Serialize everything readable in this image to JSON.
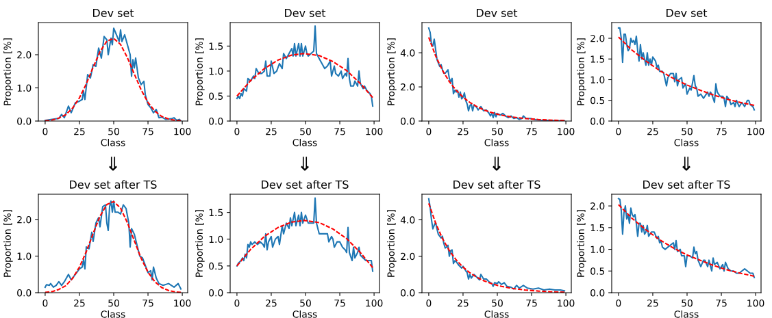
{
  "chart_data": [
    {
      "type": "line",
      "title": "Dev set",
      "xlabel": "Class",
      "ylabel": "Proportion [%]",
      "xlim": [
        -4.95,
        103.95
      ],
      "xticks": [
        0,
        25,
        50,
        75,
        100
      ],
      "ylim": [
        0,
        2.97
      ],
      "yticks": [
        {
          "value": 0,
          "label": "0.0"
        },
        {
          "value": 1,
          "label": "1.0"
        },
        {
          "value": 2,
          "label": "2.0"
        }
      ],
      "grid": false,
      "legend": false,
      "series": [
        {
          "color": "#1f77b4",
          "line_style": "solid",
          "x": [
            0,
            5,
            10,
            12,
            14,
            17,
            19,
            22,
            25,
            27,
            28,
            29,
            31,
            33,
            35,
            37,
            39,
            41,
            43,
            45,
            46,
            48,
            49,
            50,
            52,
            54,
            55,
            56,
            58,
            60,
            62,
            63,
            64,
            65,
            66,
            68,
            70,
            72,
            73,
            75,
            77,
            79,
            81,
            83,
            85,
            88,
            92,
            94,
            96,
            98,
            99
          ],
          "values": [
            0.02,
            0.05,
            0.08,
            0.2,
            0.1,
            0.45,
            0.25,
            0.55,
            0.6,
            0.65,
            0.9,
            0.65,
            1.4,
            1.3,
            1.7,
            1.65,
            2.2,
            1.9,
            2.55,
            2.45,
            2.0,
            2.5,
            2.3,
            2.8,
            2.6,
            2.4,
            2.75,
            2.4,
            2.6,
            2.3,
            2.0,
            1.35,
            1.85,
            1.6,
            1.9,
            1.3,
            1.1,
            1.2,
            0.8,
            0.5,
            0.4,
            0.25,
            0.35,
            0.1,
            0.12,
            0.05,
            0.07,
            0.1,
            0.02,
            0.05,
            0.0
          ]
        },
        {
          "color": "#ff0000",
          "line_style": "dashed",
          "x": [
            0,
            5,
            10,
            15,
            20,
            25,
            30,
            35,
            40,
            45,
            50,
            55,
            60,
            65,
            70,
            75,
            80,
            85,
            90,
            95,
            99
          ],
          "values": [
            0.01,
            0.03,
            0.09,
            0.19,
            0.39,
            0.7,
            1.12,
            1.62,
            2.09,
            2.41,
            2.49,
            2.31,
            1.91,
            1.42,
            0.94,
            0.56,
            0.3,
            0.14,
            0.06,
            0.02,
            0.01
          ]
        }
      ]
    },
    {
      "type": "line",
      "title": "Dev set",
      "xlabel": "Class",
      "ylabel": "Proportion [%]",
      "xlim": [
        -4.95,
        103.95
      ],
      "xticks": [
        0,
        25,
        50,
        75,
        100
      ],
      "ylim": [
        0,
        1.97
      ],
      "yticks": [
        {
          "value": 0,
          "label": "0.0"
        },
        {
          "value": 0.5,
          "label": "0.5"
        },
        {
          "value": 1,
          "label": "1.0"
        },
        {
          "value": 1.5,
          "label": "1.5"
        }
      ],
      "grid": false,
      "legend": false,
      "series": [
        {
          "color": "#1f77b4",
          "line_style": "solid",
          "x": [
            0,
            1,
            2,
            3,
            4,
            5,
            7,
            8,
            10,
            12,
            13,
            14,
            16,
            18,
            20,
            21,
            22,
            24,
            25,
            27,
            29,
            31,
            33,
            34,
            36,
            38,
            40,
            41,
            42,
            43,
            45,
            46,
            47,
            48,
            50,
            51,
            52,
            54,
            56,
            57,
            58,
            60,
            62,
            64,
            66,
            68,
            69,
            71,
            72,
            74,
            76,
            77,
            79,
            80,
            81,
            82,
            83,
            85,
            86,
            88,
            89,
            90,
            92,
            93,
            95,
            97,
            98,
            99
          ],
          "values": [
            0.45,
            0.5,
            0.45,
            0.55,
            0.5,
            0.65,
            0.6,
            0.85,
            0.8,
            0.9,
            0.85,
            1.05,
            0.95,
            0.95,
            1.0,
            1.2,
            0.9,
            0.9,
            1.2,
            0.95,
            1.0,
            1.15,
            1.05,
            1.35,
            1.25,
            1.35,
            1.45,
            1.3,
            1.55,
            1.3,
            1.55,
            1.3,
            1.55,
            1.3,
            1.5,
            1.35,
            1.3,
            1.35,
            1.4,
            1.9,
            1.35,
            1.25,
            1.15,
            1.05,
            1.1,
            1.2,
            0.9,
            1.1,
            0.95,
            0.9,
            1.0,
            0.85,
            0.95,
            0.9,
            1.25,
            0.85,
            0.7,
            0.7,
            0.8,
            0.7,
            1.0,
            0.75,
            0.65,
            0.7,
            0.6,
            0.55,
            0.5,
            0.3
          ]
        },
        {
          "color": "#ff0000",
          "line_style": "dashed",
          "x": [
            0,
            10,
            20,
            30,
            40,
            49,
            60,
            70,
            80,
            90,
            99
          ],
          "values": [
            0.5,
            0.81,
            1.05,
            1.22,
            1.32,
            1.35,
            1.31,
            1.19,
            1.01,
            0.75,
            0.47
          ]
        }
      ]
    },
    {
      "type": "line",
      "title": "Dev set",
      "xlabel": "Class",
      "ylabel": "Proportion [%]",
      "xlim": [
        -4.95,
        103.95
      ],
      "xticks": [
        0,
        25,
        50,
        75,
        100
      ],
      "ylim": [
        0,
        5.77
      ],
      "yticks": [
        {
          "value": 0,
          "label": "0.0"
        },
        {
          "value": 2,
          "label": "2.0"
        },
        {
          "value": 4,
          "label": "4.0"
        }
      ],
      "grid": false,
      "legend": false,
      "series": [
        {
          "color": "#1f77b4",
          "line_style": "solid",
          "x": [
            0,
            1,
            2,
            3,
            4,
            5,
            6,
            7,
            8,
            9,
            10,
            11,
            12,
            13,
            14,
            15,
            16,
            17,
            18,
            19,
            20,
            21,
            22,
            23,
            24,
            25,
            26,
            27,
            28,
            29,
            30,
            31,
            32,
            33,
            35,
            36,
            38,
            40,
            42,
            44,
            45,
            46,
            47,
            48,
            49,
            50,
            52,
            54,
            56,
            58,
            60,
            62,
            64,
            66,
            68,
            69,
            71,
            74,
            78,
            82,
            86,
            90,
            95,
            99
          ],
          "values": [
            5.45,
            5.2,
            4.5,
            4.4,
            4.8,
            4.2,
            3.6,
            3.4,
            3.2,
            3.3,
            3.0,
            2.8,
            2.8,
            2.9,
            3.0,
            2.5,
            2.3,
            2.5,
            1.6,
            1.8,
            1.7,
            1.8,
            1.4,
            1.7,
            1.3,
            1.4,
            1.65,
            1.2,
            1.0,
            0.6,
            0.9,
            1.0,
            0.6,
            0.95,
            0.8,
            0.65,
            0.85,
            0.6,
            0.65,
            0.45,
            0.3,
            0.45,
            0.2,
            0.5,
            0.25,
            0.45,
            0.35,
            0.45,
            0.3,
            0.2,
            0.3,
            0.15,
            0.2,
            0.1,
            0.15,
            0.3,
            0.15,
            0.15,
            0.08,
            0.05,
            0.04,
            0.03,
            0.02,
            0.01
          ]
        },
        {
          "color": "#ff0000",
          "line_style": "dashed",
          "x": [
            0,
            5,
            10,
            15,
            20,
            25,
            30,
            35,
            40,
            45,
            50,
            60,
            70,
            80,
            90,
            99
          ],
          "values": [
            4.9,
            3.82,
            2.97,
            2.31,
            1.8,
            1.4,
            1.09,
            0.85,
            0.66,
            0.52,
            0.4,
            0.24,
            0.15,
            0.09,
            0.05,
            0.03
          ]
        }
      ]
    },
    {
      "type": "line",
      "title": "Dev set",
      "xlabel": "Class",
      "ylabel": "Proportion [%]",
      "xlim": [
        -4.95,
        103.95
      ],
      "xticks": [
        0,
        25,
        50,
        75,
        100
      ],
      "ylim": [
        0,
        2.38
      ],
      "yticks": [
        {
          "value": 0,
          "label": "0.0"
        },
        {
          "value": 0.5,
          "label": "0.5"
        },
        {
          "value": 1,
          "label": "1.0"
        },
        {
          "value": 1.5,
          "label": "1.5"
        },
        {
          "value": 2,
          "label": "2.0"
        }
      ],
      "grid": false,
      "legend": false,
      "series": [
        {
          "color": "#1f77b4",
          "line_style": "solid",
          "x": [
            0,
            1,
            2,
            3,
            4,
            5,
            6,
            7,
            8,
            9,
            10,
            11,
            12,
            13,
            14,
            15,
            16,
            17,
            18,
            19,
            20,
            21,
            22,
            23,
            24,
            25,
            27,
            28,
            29,
            30,
            32,
            33,
            34,
            35,
            36,
            38,
            40,
            41,
            42,
            43,
            44,
            46,
            47,
            49,
            50,
            52,
            53,
            55,
            56,
            57,
            58,
            60,
            62,
            64,
            65,
            66,
            67,
            68,
            70,
            71,
            72,
            74,
            76,
            77,
            78,
            79,
            81,
            82,
            84,
            85,
            86,
            88,
            90,
            92,
            94,
            95,
            96,
            98,
            99
          ],
          "values": [
            2.25,
            2.25,
            2.0,
            1.42,
            2.1,
            2.1,
            1.85,
            1.7,
            1.75,
            2.0,
            1.9,
            1.95,
            1.85,
            2.05,
            1.7,
            1.45,
            1.85,
            1.5,
            1.65,
            1.5,
            1.35,
            1.65,
            1.35,
            1.5,
            1.35,
            1.55,
            1.45,
            1.3,
            1.35,
            1.2,
            1.2,
            1.15,
            1.0,
            0.85,
            1.05,
            1.15,
            1.15,
            0.95,
            1.15,
            0.85,
            1.0,
            1.05,
            0.8,
            0.9,
            0.65,
            0.8,
            0.75,
            1.1,
            0.85,
            0.8,
            0.6,
            0.65,
            0.55,
            0.65,
            0.7,
            0.6,
            0.7,
            0.65,
            0.45,
            0.9,
            0.7,
            0.6,
            0.6,
            0.55,
            0.35,
            0.6,
            0.5,
            0.4,
            0.45,
            0.35,
            0.5,
            0.35,
            0.45,
            0.35,
            0.5,
            0.5,
            0.4,
            0.35,
            0.27
          ]
        },
        {
          "color": "#ff0000",
          "line_style": "dashed",
          "x": [
            0,
            10,
            20,
            30,
            40,
            50,
            60,
            70,
            80,
            90,
            99
          ],
          "values": [
            2.03,
            1.71,
            1.45,
            1.22,
            1.03,
            0.87,
            0.74,
            0.62,
            0.52,
            0.44,
            0.38
          ]
        }
      ]
    },
    {
      "type": "line",
      "title": "Dev set after TS",
      "annotations": [
        "⇓"
      ],
      "xlabel": "Class",
      "ylabel": "Proportion [%]",
      "xlim": [
        -4.95,
        103.95
      ],
      "xticks": [
        0,
        25,
        50,
        75,
        100
      ],
      "ylim": [
        0,
        2.69
      ],
      "yticks": [
        {
          "value": 0,
          "label": "0.0"
        },
        {
          "value": 1,
          "label": "1.0"
        },
        {
          "value": 2,
          "label": "2.0"
        }
      ],
      "grid": false,
      "legend": false,
      "series": [
        {
          "color": "#1f77b4",
          "line_style": "solid",
          "x": [
            0,
            1,
            3,
            4,
            6,
            8,
            10,
            12,
            14,
            17,
            19,
            21,
            23,
            25,
            27,
            28,
            29,
            30,
            32,
            34,
            35,
            37,
            39,
            40,
            42,
            44,
            45,
            46,
            47,
            48,
            49,
            50,
            51,
            53,
            55,
            57,
            59,
            61,
            62,
            63,
            65,
            67,
            69,
            71,
            73,
            75,
            77,
            78,
            79,
            81,
            83,
            86,
            90,
            94,
            97,
            99
          ],
          "values": [
            0.15,
            0.22,
            0.2,
            0.25,
            0.15,
            0.2,
            0.3,
            0.2,
            0.3,
            0.5,
            0.35,
            0.45,
            0.55,
            0.65,
            0.7,
            0.9,
            0.65,
            1.25,
            1.2,
            1.65,
            1.4,
            1.9,
            2.05,
            1.8,
            2.35,
            2.4,
            1.9,
            1.7,
            2.35,
            2.5,
            2.2,
            2.5,
            2.2,
            2.2,
            2.15,
            2.4,
            2.3,
            1.9,
            1.25,
            1.75,
            1.6,
            1.3,
            1.0,
            0.95,
            0.75,
            0.55,
            0.6,
            0.35,
            0.7,
            0.4,
            0.25,
            0.2,
            0.25,
            0.15,
            0.25,
            0.1
          ]
        },
        {
          "color": "#ff0000",
          "line_style": "dashed",
          "x": [
            0,
            5,
            10,
            15,
            20,
            25,
            30,
            35,
            40,
            45,
            50,
            55,
            60,
            65,
            70,
            75,
            80,
            85,
            90,
            95,
            99
          ],
          "values": [
            0.01,
            0.03,
            0.09,
            0.19,
            0.39,
            0.7,
            1.12,
            1.62,
            2.09,
            2.41,
            2.49,
            2.31,
            1.91,
            1.42,
            0.94,
            0.56,
            0.3,
            0.14,
            0.06,
            0.02,
            0.01
          ]
        }
      ]
    },
    {
      "type": "line",
      "title": "Dev set after TS",
      "annotations": [
        "⇓"
      ],
      "xlabel": "Class",
      "ylabel": "Proportion [%]",
      "xlim": [
        -4.95,
        103.95
      ],
      "xticks": [
        0,
        25,
        50,
        75,
        100
      ],
      "ylim": [
        0,
        1.84
      ],
      "yticks": [
        {
          "value": 0,
          "label": "0.0"
        },
        {
          "value": 0.5,
          "label": "0.5"
        },
        {
          "value": 1,
          "label": "1.0"
        },
        {
          "value": 1.5,
          "label": "1.5"
        }
      ],
      "grid": false,
      "legend": false,
      "series": [
        {
          "color": "#1f77b4",
          "line_style": "solid",
          "x": [
            0,
            1,
            3,
            4,
            5,
            6,
            7,
            8,
            9,
            10,
            11,
            13,
            15,
            17,
            19,
            20,
            21,
            22,
            23,
            25,
            26,
            28,
            30,
            31,
            33,
            34,
            36,
            38,
            39,
            40,
            42,
            43,
            45,
            46,
            47,
            48,
            50,
            52,
            54,
            56,
            57,
            58,
            60,
            62,
            64,
            66,
            67,
            69,
            70,
            71,
            73,
            75,
            77,
            79,
            80,
            81,
            82,
            84,
            85,
            86,
            88,
            89,
            90,
            92,
            94,
            96,
            98,
            99
          ],
          "values": [
            0.5,
            0.55,
            0.6,
            0.65,
            0.6,
            0.72,
            0.65,
            0.9,
            0.85,
            0.95,
            0.9,
            0.95,
            0.9,
            0.95,
            0.9,
            0.85,
            1.1,
            0.8,
            0.95,
            1.05,
            0.85,
            1.0,
            1.05,
            0.9,
            1.25,
            1.1,
            1.3,
            1.2,
            1.4,
            1.25,
            1.5,
            1.25,
            1.45,
            1.25,
            1.5,
            1.3,
            1.45,
            1.3,
            1.3,
            1.3,
            1.77,
            1.3,
            1.1,
            1.1,
            1.1,
            1.1,
            0.95,
            1.05,
            1.0,
            0.85,
            0.95,
            0.95,
            0.85,
            0.8,
            0.75,
            1.22,
            0.75,
            0.6,
            0.85,
            0.65,
            0.75,
            0.85,
            0.7,
            0.65,
            0.6,
            0.6,
            0.6,
            0.4
          ]
        },
        {
          "color": "#ff0000",
          "line_style": "dashed",
          "x": [
            0,
            10,
            20,
            30,
            40,
            49,
            60,
            70,
            80,
            90,
            99
          ],
          "values": [
            0.5,
            0.81,
            1.05,
            1.22,
            1.32,
            1.35,
            1.31,
            1.19,
            1.01,
            0.75,
            0.47
          ]
        }
      ]
    },
    {
      "type": "line",
      "title": "Dev set after TS",
      "annotations": [
        "⇓"
      ],
      "xlabel": "Class",
      "ylabel": "Proportion [%]",
      "xlim": [
        -4.95,
        103.95
      ],
      "xticks": [
        0,
        25,
        50,
        75,
        100
      ],
      "ylim": [
        0,
        5.4
      ],
      "yticks": [
        {
          "value": 0,
          "label": "0.0"
        },
        {
          "value": 2,
          "label": "2.0"
        },
        {
          "value": 4,
          "label": "4.0"
        }
      ],
      "grid": false,
      "legend": false,
      "series": [
        {
          "color": "#1f77b4",
          "line_style": "solid",
          "x": [
            0,
            1,
            2,
            3,
            4,
            5,
            6,
            7,
            8,
            9,
            10,
            11,
            12,
            13,
            14,
            15,
            16,
            17,
            18,
            19,
            20,
            22,
            24,
            25,
            27,
            28,
            29,
            30,
            31,
            33,
            35,
            37,
            38,
            40,
            42,
            44,
            46,
            47,
            48,
            50,
            51,
            53,
            55,
            57,
            60,
            62,
            64,
            66,
            69,
            72,
            76,
            80,
            84,
            88,
            92,
            96,
            99
          ],
          "values": [
            5.15,
            4.7,
            4.0,
            3.5,
            3.7,
            3.85,
            3.5,
            3.2,
            3.1,
            3.0,
            3.1,
            2.7,
            2.45,
            2.5,
            2.6,
            2.0,
            2.3,
            2.35,
            1.6,
            1.75,
            1.7,
            1.5,
            1.35,
            1.45,
            1.2,
            1.1,
            0.75,
            1.0,
            0.8,
            1.0,
            0.85,
            0.7,
            1.0,
            0.75,
            0.75,
            0.6,
            0.5,
            0.35,
            0.55,
            0.5,
            0.6,
            0.45,
            0.55,
            0.35,
            0.3,
            0.2,
            0.4,
            0.25,
            0.4,
            0.25,
            0.2,
            0.25,
            0.15,
            0.2,
            0.15,
            0.15,
            0.1
          ]
        },
        {
          "color": "#ff0000",
          "line_style": "dashed",
          "x": [
            0,
            5,
            10,
            15,
            20,
            25,
            30,
            35,
            40,
            45,
            50,
            60,
            70,
            80,
            90,
            99
          ],
          "values": [
            4.9,
            3.82,
            2.97,
            2.31,
            1.8,
            1.4,
            1.09,
            0.85,
            0.66,
            0.52,
            0.4,
            0.24,
            0.15,
            0.09,
            0.05,
            0.03
          ]
        }
      ]
    },
    {
      "type": "line",
      "title": "Dev set after TS",
      "annotations": [
        "⇓"
      ],
      "xlabel": "Class",
      "ylabel": "Proportion [%]",
      "xlim": [
        -4.95,
        103.95
      ],
      "xticks": [
        0,
        25,
        50,
        75,
        100
      ],
      "ylim": [
        0,
        2.27
      ],
      "yticks": [
        {
          "value": 0,
          "label": "0.0"
        },
        {
          "value": 0.5,
          "label": "0.5"
        },
        {
          "value": 1,
          "label": "1.0"
        },
        {
          "value": 1.5,
          "label": "1.5"
        },
        {
          "value": 2,
          "label": "2.0"
        }
      ],
      "grid": false,
      "legend": false,
      "series": [
        {
          "color": "#1f77b4",
          "line_style": "solid",
          "x": [
            0,
            1,
            2,
            3,
            4,
            5,
            6,
            7,
            8,
            9,
            10,
            11,
            12,
            13,
            14,
            15,
            16,
            17,
            18,
            19,
            20,
            21,
            22,
            24,
            26,
            28,
            29,
            30,
            31,
            32,
            34,
            36,
            38,
            40,
            41,
            42,
            43,
            45,
            46,
            48,
            49,
            50,
            52,
            54,
            55,
            56,
            57,
            58,
            60,
            62,
            63,
            65,
            66,
            68,
            69,
            70,
            72,
            74,
            76,
            77,
            78,
            80,
            82,
            84,
            86,
            88,
            90,
            92,
            94,
            96,
            97,
            98,
            99
          ],
          "values": [
            2.17,
            2.15,
            1.9,
            1.35,
            1.85,
            2.0,
            1.7,
            1.8,
            1.6,
            1.95,
            1.8,
            1.75,
            1.8,
            1.6,
            1.3,
            1.6,
            1.6,
            1.4,
            1.55,
            1.35,
            1.4,
            1.55,
            1.3,
            1.4,
            1.4,
            1.25,
            1.3,
            1.15,
            1.2,
            1.05,
            1.0,
            1.05,
            1.1,
            1.15,
            1.0,
            1.2,
            0.95,
            1.0,
            0.85,
            0.85,
            0.6,
            0.85,
            0.85,
            0.8,
            1.05,
            0.9,
            0.95,
            0.75,
            0.6,
            0.75,
            0.75,
            0.6,
            0.75,
            0.5,
            0.8,
            0.65,
            0.7,
            0.55,
            0.65,
            0.5,
            0.7,
            0.55,
            0.5,
            0.5,
            0.45,
            0.45,
            0.5,
            0.55,
            0.5,
            0.45,
            0.45,
            0.45,
            0.35
          ]
        },
        {
          "color": "#ff0000",
          "line_style": "dashed",
          "x": [
            0,
            10,
            20,
            30,
            40,
            50,
            60,
            70,
            80,
            90,
            99
          ],
          "values": [
            2.03,
            1.71,
            1.45,
            1.22,
            1.03,
            0.87,
            0.74,
            0.62,
            0.52,
            0.44,
            0.38
          ]
        }
      ]
    }
  ]
}
